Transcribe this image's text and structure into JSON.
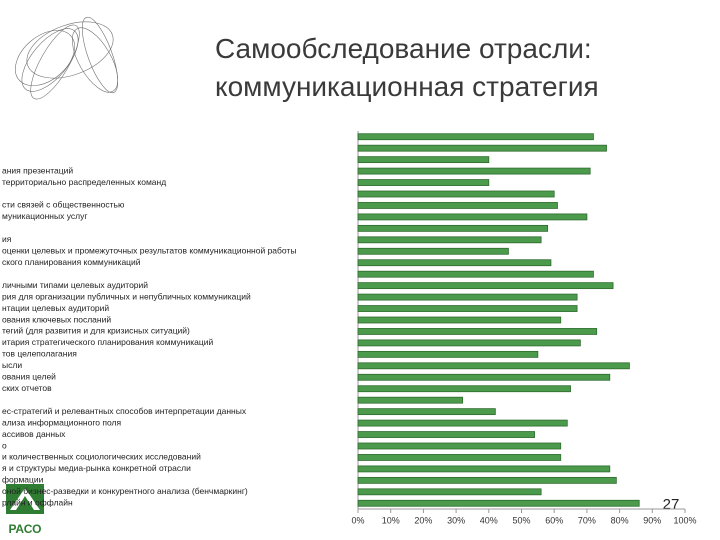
{
  "chart_data": {
    "type": "bar",
    "orientation": "horizontal",
    "title": "Самообследование отрасли: коммуникационная стратегия",
    "categories": [
      null,
      null,
      null,
      "ания презентаций",
      "территориально распределенных команд",
      null,
      "сти связей с общественностью",
      "муникационных услуг",
      null,
      "ия",
      "оценки целевых и промежуточных результатов коммуникационной работы",
      "ского планирования коммуникаций",
      null,
      "личными типами целевых аудиторий",
      "рия для организации публичных и непубличных коммуникаций",
      "нтации целевых аудиторий",
      "ования ключевых посланий",
      "тегий (для развития и для кризисных ситуаций)",
      "итария стратегического планирования коммуникаций",
      "тов целеполагания",
      "ысли",
      "ования целей",
      "ских отчетов",
      null,
      "ес-стратегий и релевантных способов интерпретации данных",
      "ализа информационного поля",
      "ассивов данных",
      "о",
      "и количественных социологических исследований",
      "я и структуры медиа-рынка конкретной отрасли",
      "формации",
      "оной бизнес-разведки и конкурентного анализа (бенчмаркинг)",
      "рлайн и оффлайн"
    ],
    "values": [
      72,
      76,
      40,
      71,
      40,
      60,
      61,
      70,
      58,
      56,
      46,
      59,
      72,
      78,
      67,
      67,
      62,
      73,
      68,
      55,
      83,
      77,
      65,
      32,
      42,
      64,
      54,
      62,
      62,
      77,
      79,
      56,
      86
    ],
    "color": "#4c9a4c",
    "xlim": [
      0,
      100
    ],
    "xticks": [
      {
        "value": 0,
        "label": "0%"
      },
      {
        "value": 10,
        "label": "10%"
      },
      {
        "value": 20,
        "label": "20%"
      },
      {
        "value": 30,
        "label": "30%"
      },
      {
        "value": 40,
        "label": "40%"
      },
      {
        "value": 50,
        "label": "50%"
      },
      {
        "value": 60,
        "label": "60%"
      },
      {
        "value": 70,
        "label": "70%"
      },
      {
        "value": 80,
        "label": "80%"
      },
      {
        "value": 90,
        "label": "90%"
      },
      {
        "value": 100,
        "label": "100%"
      }
    ]
  },
  "slide": {
    "page_number": "27",
    "logo": "РАСО"
  }
}
